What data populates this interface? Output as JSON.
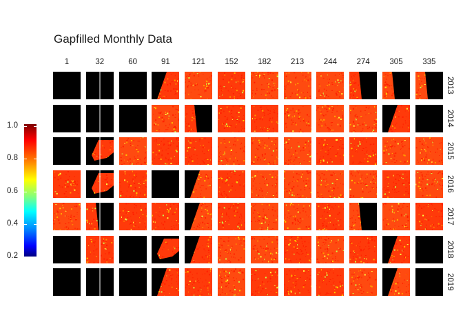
{
  "chart_data": {
    "type": "heatmap",
    "title": "Gapfilled Monthly Data",
    "columns": [
      "1",
      "32",
      "60",
      "91",
      "121",
      "152",
      "182",
      "213",
      "244",
      "274",
      "305",
      "335"
    ],
    "rows": [
      "2013",
      "2014",
      "2015",
      "2016",
      "2017",
      "2018",
      "2019"
    ],
    "legend": {
      "position": "left",
      "ticks": [
        "1.0",
        "0.8",
        "0.6",
        "0.4",
        "0.2"
      ],
      "range": [
        0.2,
        1.0
      ]
    },
    "panels": [
      [
        "none",
        "none",
        "none",
        "partial-right",
        "full",
        "full",
        "full",
        "full",
        "full",
        "partial-left",
        "partial-left",
        "partial-left"
      ],
      [
        "none",
        "none",
        "none",
        "full",
        "partial-left",
        "full",
        "full",
        "full",
        "full",
        "full",
        "partial-right",
        "none"
      ],
      [
        "none",
        "sparse",
        "full",
        "full",
        "full",
        "full",
        "full",
        "full",
        "full",
        "full",
        "full",
        "full"
      ],
      [
        "full",
        "sparse",
        "full",
        "none",
        "partial-right",
        "full",
        "full",
        "full",
        "full",
        "full",
        "full",
        "full"
      ],
      [
        "full",
        "partial-left",
        "full",
        "full",
        "partial-right",
        "full",
        "full",
        "full",
        "full",
        "partial-left",
        "full",
        "full"
      ],
      [
        "none",
        "full",
        "none",
        "sparse",
        "partial-right",
        "full",
        "full",
        "full",
        "full",
        "full",
        "partial-right",
        "none"
      ],
      [
        "none",
        "none",
        "none",
        "partial-right",
        "full",
        "full",
        "full",
        "full",
        "full",
        "full",
        "partial-right",
        "none"
      ]
    ]
  }
}
